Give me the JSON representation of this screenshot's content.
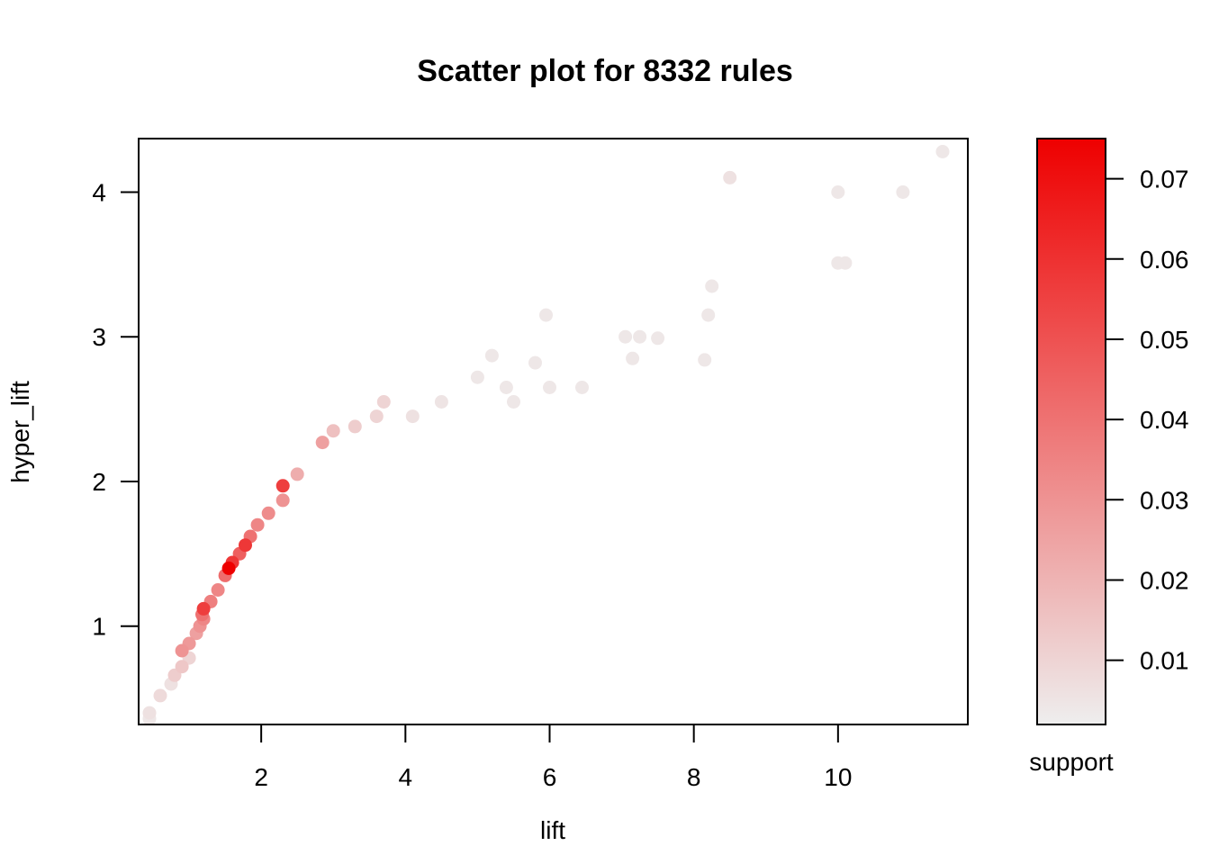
{
  "chart_data": {
    "type": "scatter",
    "title": "Scatter plot for 8332 rules",
    "xlabel": "lift",
    "ylabel": "hyper_lift",
    "xlim": [
      0.3,
      11.8
    ],
    "ylim": [
      0.32,
      4.37
    ],
    "x_ticks": [
      2,
      4,
      6,
      8,
      10
    ],
    "y_ticks": [
      1,
      2,
      3,
      4
    ],
    "grid": false,
    "color_scale": {
      "label": "support",
      "range": [
        0.002,
        0.075
      ],
      "ticks": [
        "0.01",
        "0.02",
        "0.03",
        "0.04",
        "0.05",
        "0.06",
        "0.07"
      ],
      "low_color": "#eeeeee",
      "high_color": "#ee0000"
    },
    "points": [
      [
        0.45,
        0.36,
        0.004
      ],
      [
        0.45,
        0.4,
        0.006
      ],
      [
        0.6,
        0.52,
        0.008
      ],
      [
        0.75,
        0.6,
        0.006
      ],
      [
        0.8,
        0.66,
        0.012
      ],
      [
        0.9,
        0.72,
        0.014
      ],
      [
        0.9,
        0.83,
        0.03
      ],
      [
        1.0,
        0.88,
        0.028
      ],
      [
        1.0,
        0.78,
        0.01
      ],
      [
        1.1,
        0.95,
        0.026
      ],
      [
        1.15,
        1.0,
        0.03
      ],
      [
        1.2,
        1.05,
        0.034
      ],
      [
        1.18,
        1.08,
        0.04
      ],
      [
        1.2,
        1.12,
        0.056
      ],
      [
        1.3,
        1.17,
        0.036
      ],
      [
        1.4,
        1.25,
        0.034
      ],
      [
        1.5,
        1.35,
        0.042
      ],
      [
        1.55,
        1.4,
        0.075
      ],
      [
        1.6,
        1.44,
        0.058
      ],
      [
        1.7,
        1.5,
        0.046
      ],
      [
        1.78,
        1.56,
        0.058
      ],
      [
        1.85,
        1.62,
        0.04
      ],
      [
        1.95,
        1.7,
        0.034
      ],
      [
        2.1,
        1.78,
        0.032
      ],
      [
        2.3,
        1.97,
        0.056
      ],
      [
        2.3,
        1.87,
        0.03
      ],
      [
        2.5,
        2.05,
        0.022
      ],
      [
        2.85,
        2.27,
        0.026
      ],
      [
        3.0,
        2.35,
        0.016
      ],
      [
        3.3,
        2.38,
        0.012
      ],
      [
        3.6,
        2.45,
        0.01
      ],
      [
        3.7,
        2.55,
        0.01
      ],
      [
        4.1,
        2.45,
        0.006
      ],
      [
        4.5,
        2.55,
        0.005
      ],
      [
        5.0,
        2.72,
        0.004
      ],
      [
        5.2,
        2.87,
        0.004
      ],
      [
        5.4,
        2.65,
        0.004
      ],
      [
        5.5,
        2.55,
        0.004
      ],
      [
        5.8,
        2.82,
        0.004
      ],
      [
        5.95,
        3.15,
        0.004
      ],
      [
        6.0,
        2.65,
        0.004
      ],
      [
        6.45,
        2.65,
        0.004
      ],
      [
        7.05,
        3.0,
        0.004
      ],
      [
        7.15,
        2.85,
        0.004
      ],
      [
        7.25,
        3.0,
        0.004
      ],
      [
        7.5,
        2.99,
        0.004
      ],
      [
        8.15,
        2.84,
        0.004
      ],
      [
        8.2,
        3.15,
        0.004
      ],
      [
        8.25,
        3.35,
        0.004
      ],
      [
        8.5,
        4.1,
        0.006
      ],
      [
        10.0,
        4.0,
        0.004
      ],
      [
        10.0,
        3.51,
        0.004
      ],
      [
        10.1,
        3.51,
        0.004
      ],
      [
        10.9,
        4.0,
        0.004
      ],
      [
        11.45,
        4.28,
        0.004
      ]
    ]
  }
}
